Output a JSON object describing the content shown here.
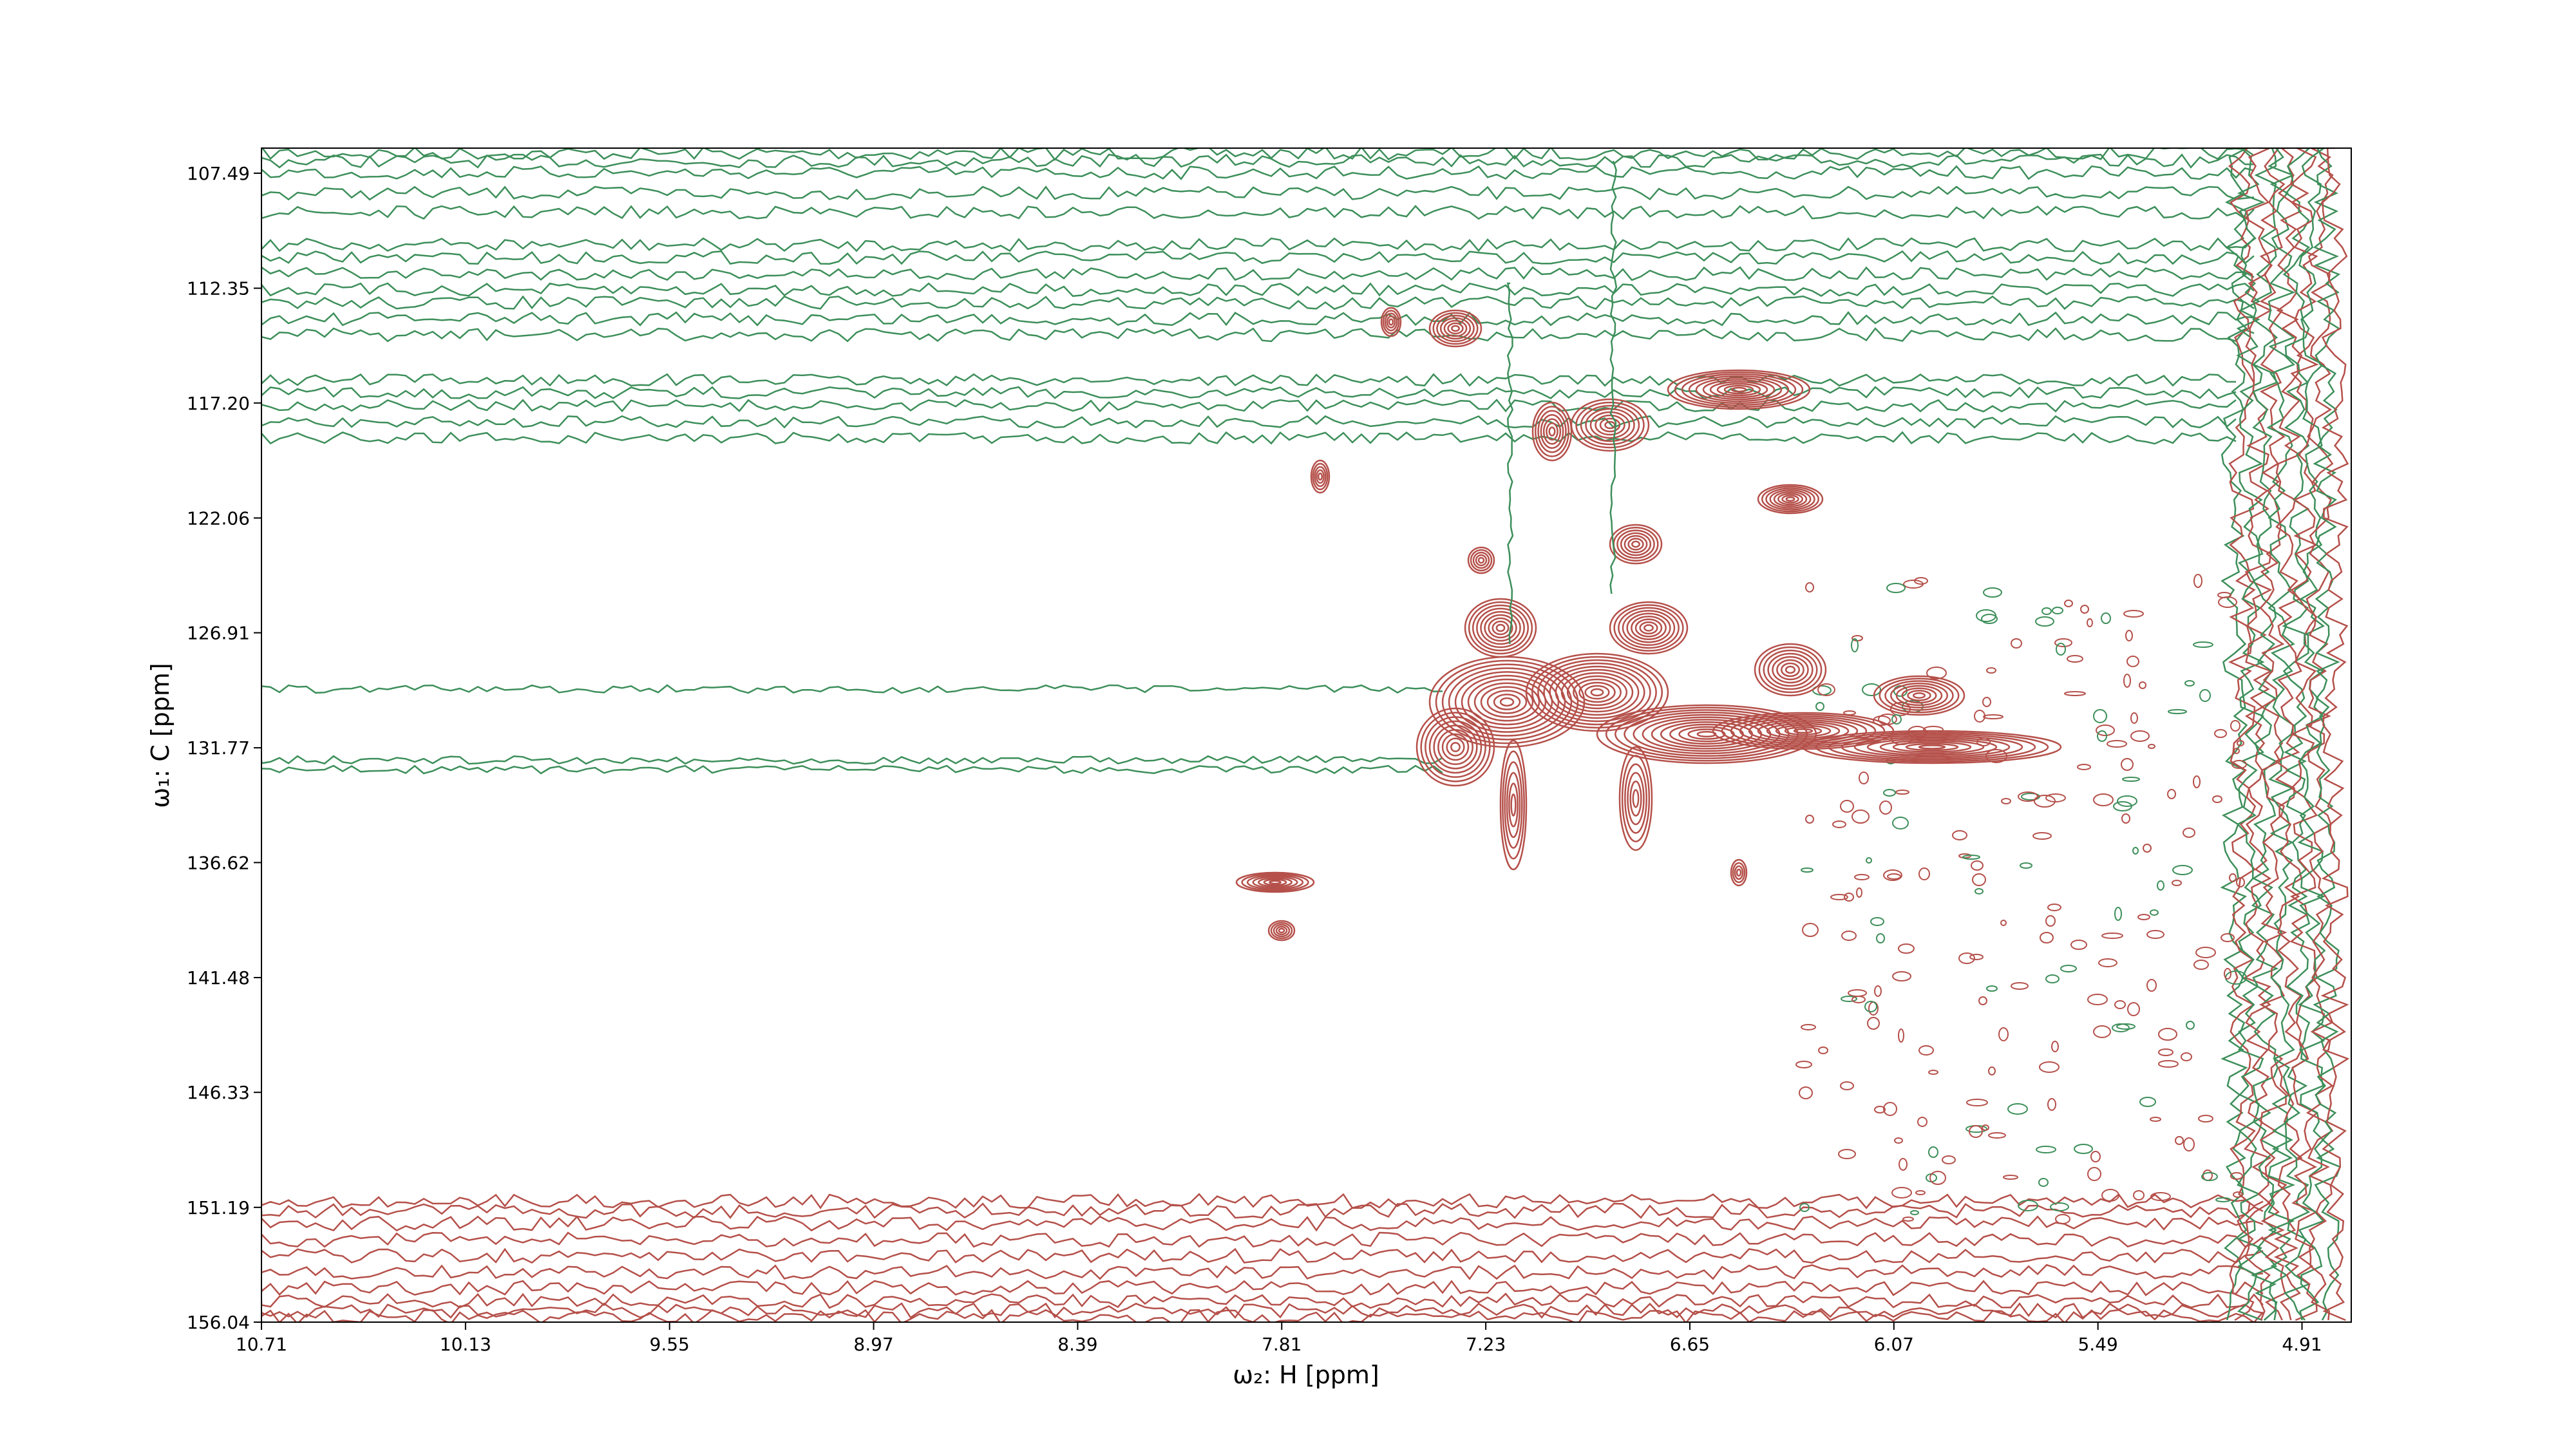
{
  "chart_data": {
    "type": "contour",
    "x_label": "ω₂: H [ppm]",
    "y_label": "ω₁: C [ppm]",
    "xlim": [
      10.71,
      4.77
    ],
    "xticks": [
      10.71,
      10.13,
      9.55,
      8.97,
      8.39,
      7.81,
      7.23,
      6.65,
      6.07,
      5.49,
      4.91
    ],
    "ylim": [
      156.04,
      106.43
    ],
    "yticks": [
      107.49,
      112.35,
      {
        "value": 117.2,
        "label": "117.20"
      },
      122.06,
      126.91,
      131.77,
      136.62,
      141.48,
      146.33,
      151.19,
      156.04
    ],
    "colors": [
      "#b5504a",
      "#3d8f5a"
    ]
  }
}
